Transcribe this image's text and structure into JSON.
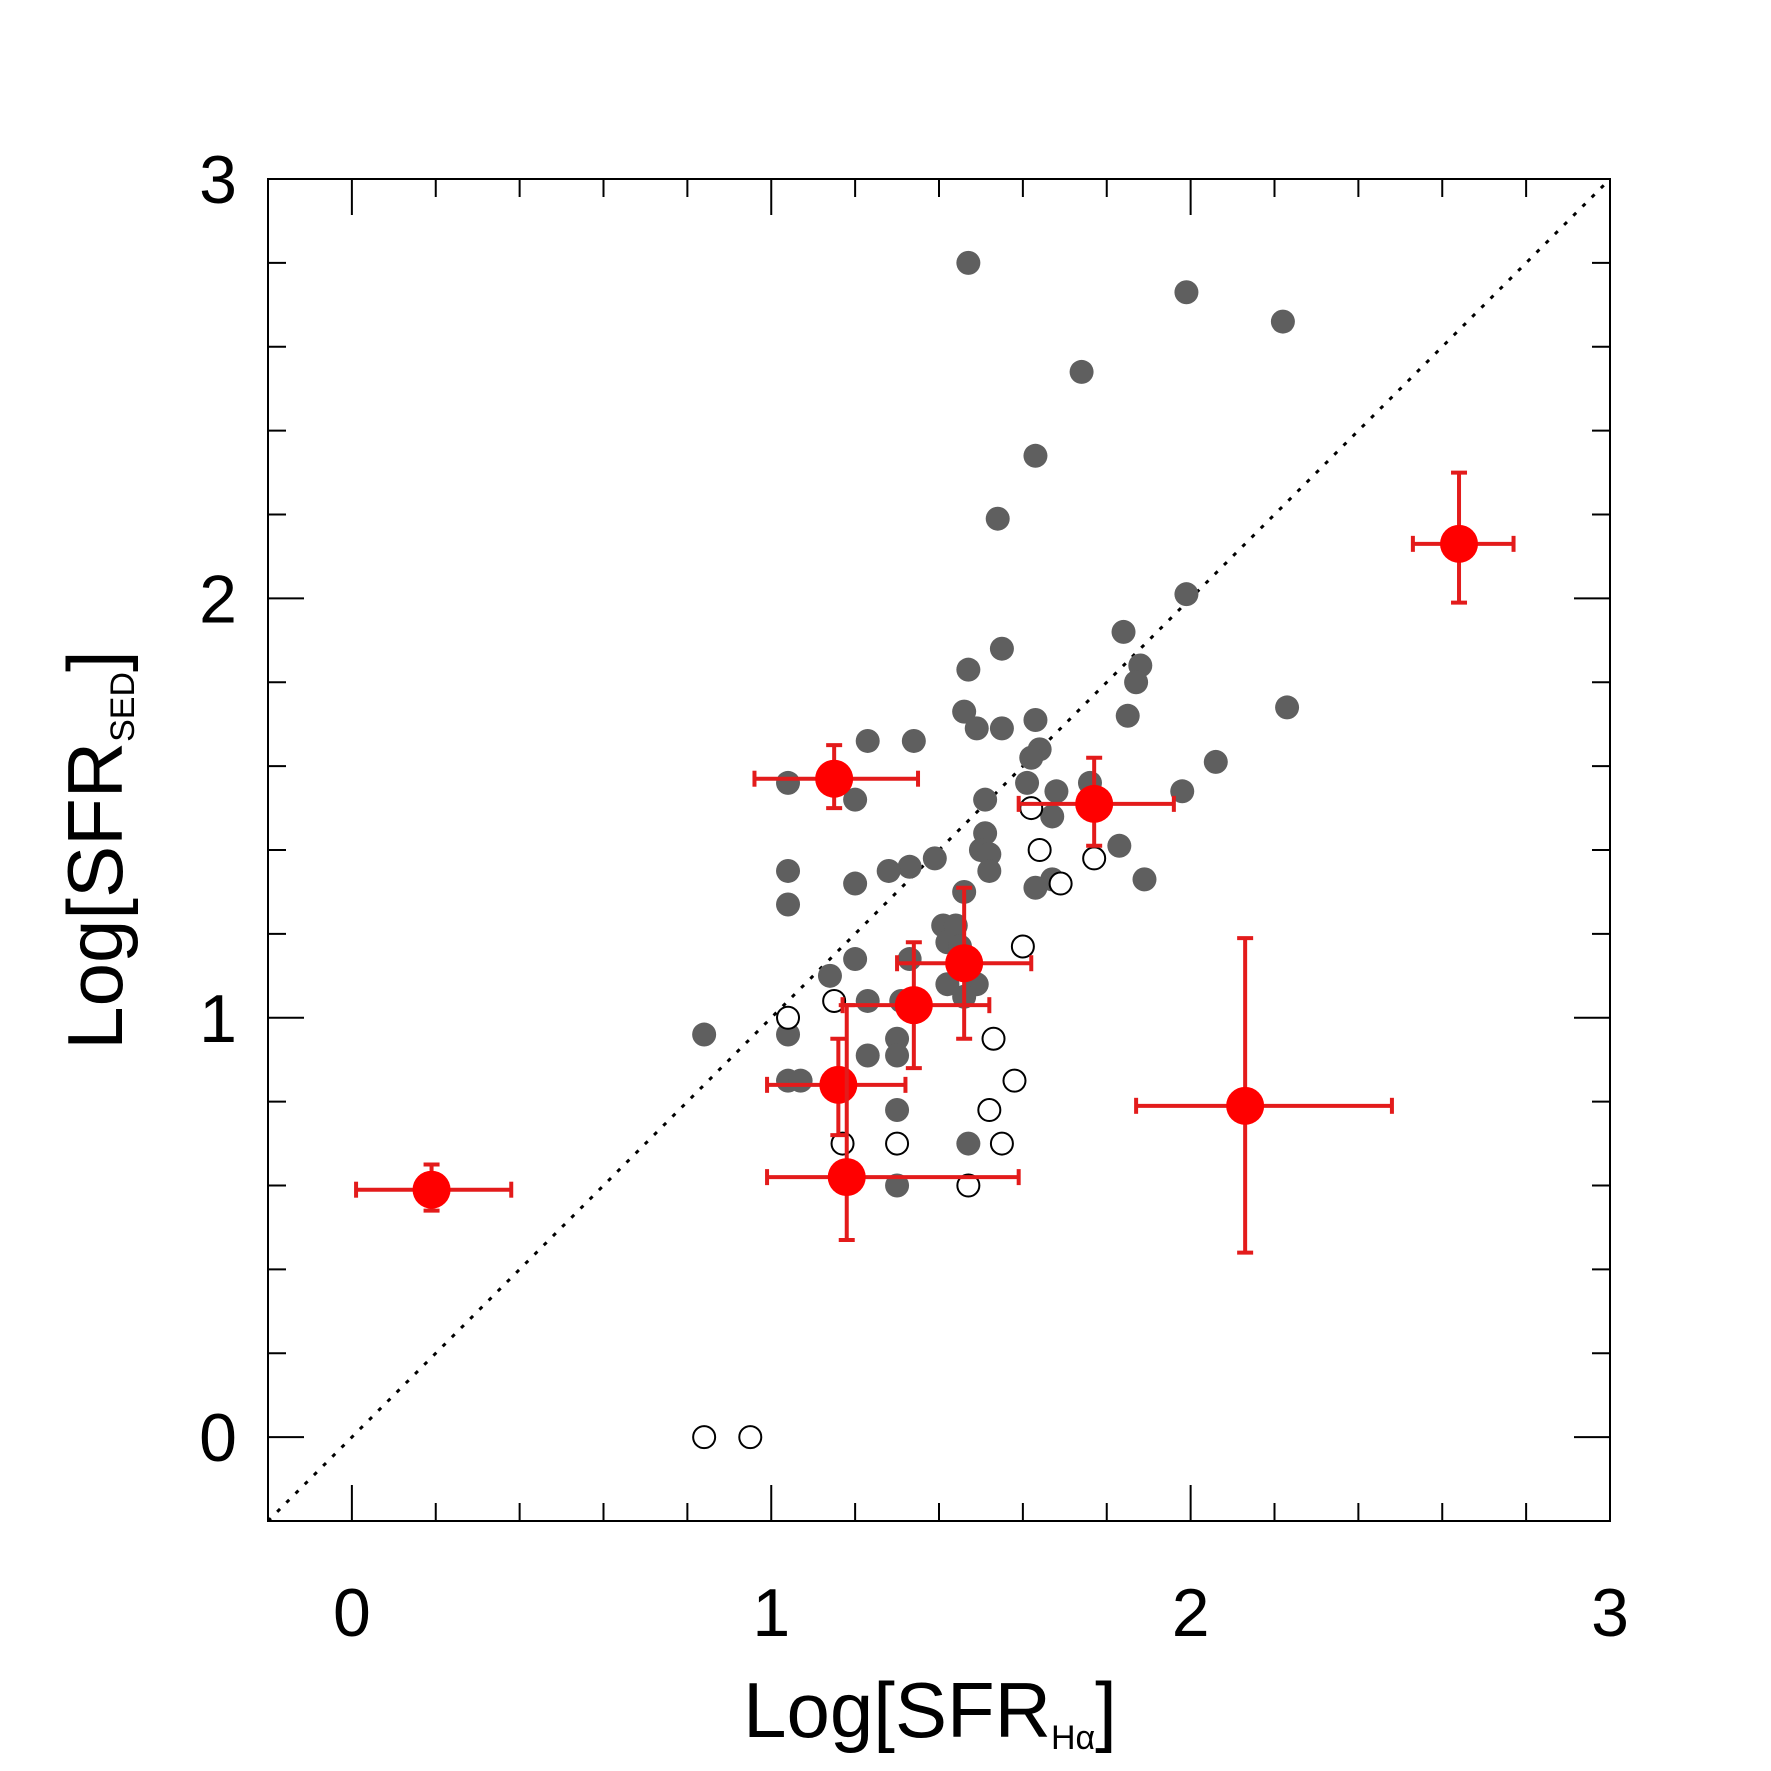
{
  "chart_data": {
    "type": "scatter",
    "title": "",
    "xlabel": {
      "main": "Log[SFR",
      "sub": "Hα",
      "close": "]"
    },
    "ylabel": {
      "main": "Log[SFR",
      "sub": "SED",
      "close": "]"
    },
    "xlim": [
      -0.2,
      3.0
    ],
    "ylim": [
      -0.2,
      3.0
    ],
    "x_ticks": [
      0,
      1,
      2,
      3
    ],
    "y_ticks": [
      0,
      1,
      2,
      3
    ],
    "x_tick_labels": [
      "0",
      "1",
      "2",
      "3"
    ],
    "y_tick_labels": [
      "0",
      "1",
      "2",
      "3"
    ],
    "minor_step": 0.2,
    "grid": false,
    "reference_line": {
      "style": "dotted",
      "label": "one-to-one",
      "x": [
        -0.2,
        3.0
      ],
      "y": [
        -0.2,
        3.0
      ]
    },
    "series": [
      {
        "name": "filled-gray",
        "marker": "filled-circle",
        "color": "#5f5f5f",
        "points": [
          [
            1.47,
            2.8
          ],
          [
            1.99,
            2.73
          ],
          [
            2.22,
            2.66
          ],
          [
            1.74,
            2.54
          ],
          [
            1.63,
            2.34
          ],
          [
            1.54,
            2.19
          ],
          [
            1.99,
            2.01
          ],
          [
            1.84,
            1.92
          ],
          [
            1.55,
            1.88
          ],
          [
            1.47,
            1.83
          ],
          [
            1.88,
            1.84
          ],
          [
            1.87,
            1.8
          ],
          [
            2.23,
            1.74
          ],
          [
            1.46,
            1.73
          ],
          [
            1.85,
            1.72
          ],
          [
            1.63,
            1.71
          ],
          [
            1.49,
            1.69
          ],
          [
            1.55,
            1.69
          ],
          [
            1.23,
            1.66
          ],
          [
            1.34,
            1.66
          ],
          [
            1.64,
            1.64
          ],
          [
            1.62,
            1.62
          ],
          [
            2.06,
            1.61
          ],
          [
            1.04,
            1.56
          ],
          [
            1.61,
            1.56
          ],
          [
            1.76,
            1.56
          ],
          [
            1.68,
            1.54
          ],
          [
            1.98,
            1.54
          ],
          [
            1.2,
            1.52
          ],
          [
            1.51,
            1.52
          ],
          [
            1.67,
            1.48
          ],
          [
            1.51,
            1.44
          ],
          [
            1.5,
            1.4
          ],
          [
            1.52,
            1.39
          ],
          [
            1.83,
            1.41
          ],
          [
            1.39,
            1.38
          ],
          [
            1.33,
            1.36
          ],
          [
            1.28,
            1.35
          ],
          [
            1.04,
            1.35
          ],
          [
            1.52,
            1.35
          ],
          [
            1.89,
            1.33
          ],
          [
            1.2,
            1.32
          ],
          [
            1.67,
            1.33
          ],
          [
            1.63,
            1.31
          ],
          [
            1.04,
            1.27
          ],
          [
            1.46,
            1.3
          ],
          [
            1.41,
            1.22
          ],
          [
            1.44,
            1.22
          ],
          [
            1.42,
            1.18
          ],
          [
            1.45,
            1.17
          ],
          [
            1.2,
            1.14
          ],
          [
            1.33,
            1.14
          ],
          [
            1.14,
            1.1
          ],
          [
            1.42,
            1.08
          ],
          [
            1.49,
            1.08
          ],
          [
            1.46,
            1.05
          ],
          [
            1.23,
            1.04
          ],
          [
            1.31,
            1.04
          ],
          [
            1.04,
            0.96
          ],
          [
            0.84,
            0.96
          ],
          [
            1.3,
            0.95
          ],
          [
            1.23,
            0.91
          ],
          [
            1.3,
            0.91
          ],
          [
            1.04,
            0.85
          ],
          [
            1.07,
            0.85
          ],
          [
            1.3,
            0.78
          ],
          [
            1.47,
            0.7
          ],
          [
            1.3,
            0.6
          ]
        ]
      },
      {
        "name": "open-circle",
        "marker": "open-circle",
        "color": "#000000",
        "points": [
          [
            1.62,
            1.5
          ],
          [
            1.64,
            1.4
          ],
          [
            1.77,
            1.38
          ],
          [
            1.69,
            1.32
          ],
          [
            1.6,
            1.17
          ],
          [
            1.04,
            1.0
          ],
          [
            1.15,
            1.04
          ],
          [
            1.53,
            0.95
          ],
          [
            1.58,
            0.85
          ],
          [
            1.52,
            0.78
          ],
          [
            1.17,
            0.7
          ],
          [
            1.3,
            0.7
          ],
          [
            1.55,
            0.7
          ],
          [
            1.47,
            0.6
          ],
          [
            0.84,
            0.0
          ],
          [
            0.95,
            0.0
          ]
        ]
      },
      {
        "name": "red-errorbar",
        "marker": "filled-circle",
        "color": "#ff0000",
        "error_color": "#e31b1b",
        "points": [
          {
            "x": 2.64,
            "y": 2.13,
            "xerr": [
              0.11,
              0.13
            ],
            "yerr": [
              0.14,
              0.17
            ]
          },
          {
            "x": 1.15,
            "y": 1.57,
            "xerr": [
              0.19,
              0.2
            ],
            "yerr": [
              0.07,
              0.08
            ]
          },
          {
            "x": 1.77,
            "y": 1.51,
            "xerr": [
              0.18,
              0.19
            ],
            "yerr": [
              0.1,
              0.11
            ]
          },
          {
            "x": 1.46,
            "y": 1.13,
            "xerr": [
              0.16,
              0.16
            ],
            "yerr": [
              0.18,
              0.18
            ]
          },
          {
            "x": 1.34,
            "y": 1.03,
            "xerr": [
              0.17,
              0.18
            ],
            "yerr": [
              0.15,
              0.15
            ]
          },
          {
            "x": 1.16,
            "y": 0.84,
            "xerr": [
              0.17,
              0.16
            ],
            "yerr": [
              0.12,
              0.11
            ]
          },
          {
            "x": 2.13,
            "y": 0.79,
            "xerr": [
              0.26,
              0.35
            ],
            "yerr": [
              0.35,
              0.4
            ]
          },
          {
            "x": 1.18,
            "y": 0.62,
            "xerr": [
              0.19,
              0.41
            ],
            "yerr": [
              0.15,
              0.41
            ]
          },
          {
            "x": 0.19,
            "y": 0.59,
            "xerr": [
              0.18,
              0.19
            ],
            "yerr": [
              0.05,
              0.06
            ]
          }
        ]
      }
    ]
  }
}
